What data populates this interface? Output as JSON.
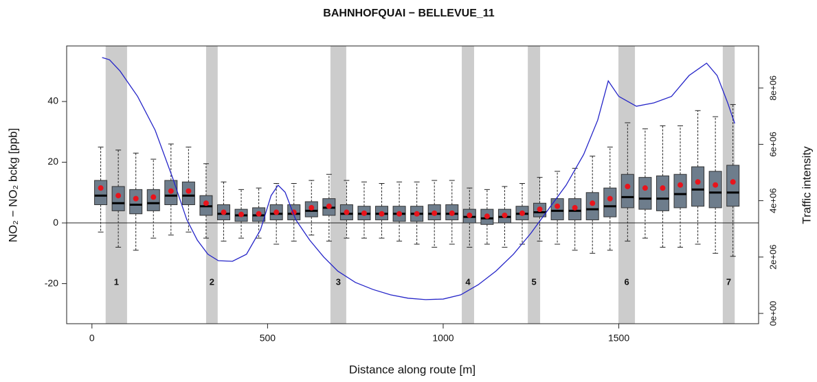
{
  "chart_data": {
    "type": "boxplot",
    "title": "BAHNHOFQUAI − BELLEVUE_11",
    "x_label": "Distance along route [m]",
    "y_label": "NO₂ − NO₂ bckg [ppb]",
    "y2_label": "Traffic intensity",
    "xlim": [
      -72,
      1898
    ],
    "xticks": [
      0,
      500,
      1000,
      1500
    ],
    "ylim": [
      -33.2,
      58.3
    ],
    "yticks": [
      -20,
      0,
      20,
      40
    ],
    "y2lim": [
      -365000,
      9490000
    ],
    "y2ticks": [
      {
        "value": 0,
        "label": "0e+00"
      },
      {
        "value": 2000000,
        "label": "2e+06"
      },
      {
        "value": 4000000,
        "label": "4e+06"
      },
      {
        "value": 6000000,
        "label": "6e+06"
      },
      {
        "value": 8000000,
        "label": "8e+06"
      }
    ],
    "hline": 0,
    "box_color": "#6e7d8c",
    "mean_color": "#e8141c",
    "x": [
      25,
      75,
      125,
      175,
      225,
      275,
      325,
      375,
      425,
      475,
      525,
      575,
      625,
      675,
      725,
      775,
      825,
      875,
      925,
      975,
      1025,
      1075,
      1125,
      1175,
      1225,
      1275,
      1325,
      1375,
      1425,
      1475,
      1525,
      1575,
      1625,
      1675,
      1725,
      1775,
      1825
    ],
    "whisker_low": [
      -3,
      -8,
      -9,
      -5,
      -4,
      -3,
      -5,
      -6,
      -5,
      -5,
      -7,
      -6,
      -4,
      -6,
      -5,
      -5,
      -5,
      -6,
      -7,
      -8,
      -7,
      -8,
      -7,
      -8,
      -7,
      -6,
      -7,
      -9,
      -10,
      -9,
      -6,
      -5,
      -8,
      -8,
      -7,
      -10,
      -11
    ],
    "q1": [
      6,
      4,
      3,
      4,
      6,
      6,
      2.5,
      1,
      0.5,
      0.5,
      1,
      1,
      2,
      2.5,
      1,
      1,
      1,
      0.5,
      0.5,
      1,
      1,
      0,
      -0.5,
      0,
      1,
      2,
      1,
      1,
      1,
      2,
      5,
      4.5,
      4,
      5,
      5.5,
      5,
      5.5
    ],
    "median": [
      9,
      6.5,
      6,
      6.5,
      9,
      9,
      5.5,
      3,
      2.5,
      2.5,
      3,
      3,
      4,
      5,
      3,
      3,
      3,
      3,
      3,
      3,
      3,
      2,
      1.5,
      2,
      3,
      3.5,
      4,
      4,
      4.5,
      5.5,
      8.5,
      8,
      8,
      9.5,
      11,
      10,
      10
    ],
    "q3": [
      14,
      12,
      11,
      11,
      14,
      13.5,
      9,
      6,
      4.5,
      5,
      6,
      6,
      7,
      8,
      6,
      5.5,
      5.5,
      5.5,
      5.5,
      6,
      6,
      4.5,
      4.5,
      4.5,
      5.5,
      6.5,
      8,
      8,
      10,
      11.5,
      16,
      15,
      15.5,
      16,
      18.5,
      17,
      19
    ],
    "whisker_high": [
      25,
      24,
      23,
      21,
      26,
      25,
      19.5,
      13.5,
      11,
      11.5,
      13,
      13,
      14,
      16,
      14,
      13.5,
      13,
      13.5,
      13.5,
      14,
      14,
      11.5,
      11,
      12,
      13,
      15,
      17,
      18,
      22,
      25,
      33,
      31,
      32,
      32,
      37,
      35,
      39
    ],
    "mean": [
      11.5,
      9,
      8,
      8.5,
      10.5,
      10.5,
      6.5,
      3.5,
      2.8,
      3,
      3.5,
      3.5,
      5,
      5.5,
      3.5,
      3.2,
      3,
      3,
      3,
      3.2,
      3.2,
      2.5,
      2.2,
      2.5,
      3.2,
      4.5,
      5.5,
      5,
      6.5,
      8,
      12,
      11.5,
      11.5,
      12.5,
      13.5,
      12.5,
      13.5
    ],
    "bands": {
      "color": "#cccccc",
      "labels": [
        "1",
        "2",
        "3",
        "4",
        "5",
        "6",
        "7"
      ],
      "starts": [
        39,
        325,
        679,
        1053,
        1241,
        1499,
        1796
      ],
      "ends": [
        100,
        358,
        724,
        1088,
        1276,
        1546,
        1830
      ]
    },
    "line": {
      "color": "#2424c8",
      "axis": "y2",
      "x": [
        29,
        50,
        80,
        130,
        180,
        230,
        270,
        300,
        330,
        360,
        400,
        440,
        480,
        510,
        530,
        550,
        580,
        620,
        660,
        700,
        750,
        800,
        850,
        900,
        950,
        1000,
        1050,
        1100,
        1150,
        1200,
        1250,
        1300,
        1350,
        1400,
        1440,
        1470,
        1500,
        1550,
        1600,
        1650,
        1700,
        1750,
        1780,
        1810,
        1830
      ],
      "values": [
        9080000,
        9000000,
        8600000,
        7700000,
        6500000,
        4800000,
        3330000,
        2600000,
        2100000,
        1870000,
        1850000,
        2100000,
        2970000,
        4180000,
        4550000,
        4300000,
        3330000,
        2600000,
        2000000,
        1500000,
        1100000,
        850000,
        660000,
        540000,
        490000,
        510000,
        660000,
        1020000,
        1500000,
        2100000,
        2850000,
        3700000,
        4550000,
        5640000,
        6860000,
        8250000,
        7700000,
        7350000,
        7470000,
        7700000,
        8440000,
        8880000,
        8440000,
        7470000,
        6740000
      ]
    }
  }
}
